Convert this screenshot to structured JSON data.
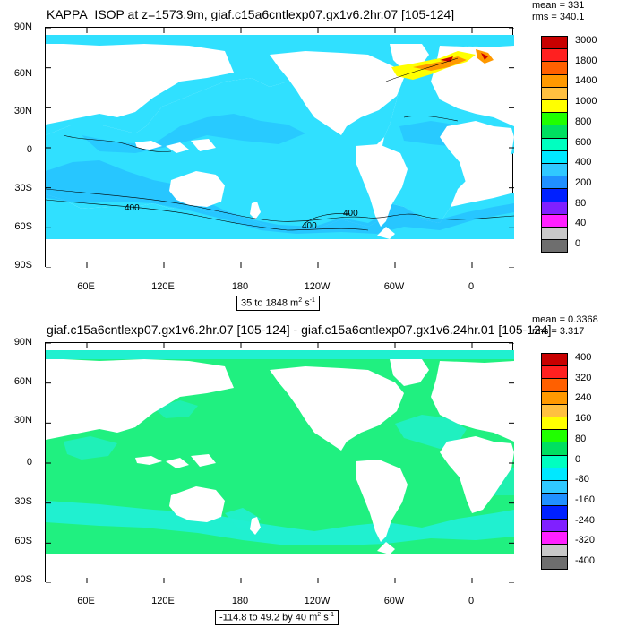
{
  "panels": [
    {
      "title": "KAPPA_ISOP at z=1573.9m, giaf.c15a6cntlexp07.gx1v6.2hr.07 [105-124]",
      "stats": {
        "mean": "mean = 331",
        "rms": "rms = 340.1"
      },
      "range_text": "35 to 1848 m",
      "range_unit_exp": "2",
      "range_unit_tail": " s",
      "range_unit_exp2": "-1",
      "lat_labels": [
        "90N",
        "60N",
        "30N",
        "0",
        "30S",
        "60S",
        "90S"
      ],
      "lon_labels": [
        "60E",
        "120E",
        "180",
        "120W",
        "60W",
        "0"
      ],
      "contour_labels": [
        "400",
        "400",
        "400"
      ],
      "legend_labels": [
        "3000",
        "1800",
        "1400",
        "1000",
        "800",
        "600",
        "400",
        "200",
        "80",
        "40",
        "0"
      ],
      "legend_colors": [
        "#c80000",
        "#ff2020",
        "#ff6000",
        "#ff9900",
        "#ffc040",
        "#ffff00",
        "#20ff00",
        "#00e060",
        "#00ffc0",
        "#00e8ff",
        "#30c8ff",
        "#2090ff",
        "#0020ff",
        "#8020ff",
        "#ff20ff",
        "#c8c8c8",
        "#6e6e6e"
      ],
      "ocean_color": "#30e0ff"
    },
    {
      "title": "giaf.c15a6cntlexp07.gx1v6.2hr.07 [105-124] - giaf.c15a6cntlexp07.gx1v6.24hr.01 [105-124]",
      "stats": {
        "mean": "mean = 0.3368",
        "rms": "rms = 3.317"
      },
      "range_text": "-114.8 to 49.2 by 40 m",
      "range_unit_exp": "2",
      "range_unit_tail": " s",
      "range_unit_exp2": "-1",
      "lat_labels": [
        "90N",
        "60N",
        "30N",
        "0",
        "30S",
        "60S",
        "90S"
      ],
      "lon_labels": [
        "60E",
        "120E",
        "180",
        "120W",
        "60W",
        "0"
      ],
      "legend_labels": [
        "400",
        "320",
        "240",
        "160",
        "80",
        "0",
        "-80",
        "-160",
        "-240",
        "-320",
        "-400"
      ],
      "legend_colors": [
        "#c80000",
        "#ff2020",
        "#ff6000",
        "#ff9900",
        "#ffc040",
        "#ffff00",
        "#20ff00",
        "#00e060",
        "#00ffc0",
        "#00e8ff",
        "#30c8ff",
        "#2090ff",
        "#0020ff",
        "#8020ff",
        "#ff20ff",
        "#c8c8c8",
        "#6e6e6e"
      ],
      "ocean_color": "#20f080"
    }
  ]
}
